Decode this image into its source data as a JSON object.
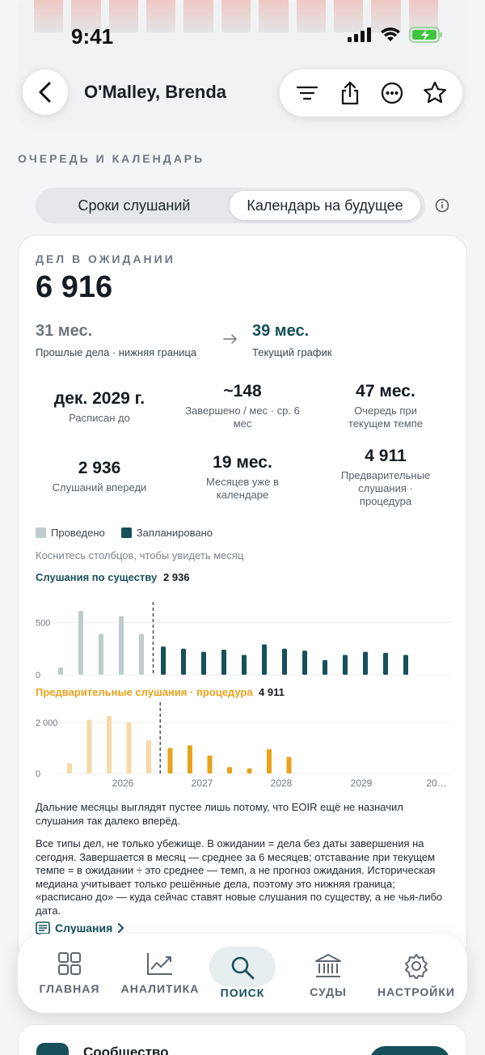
{
  "status_bar": {
    "time": "9:41"
  },
  "header": {
    "title": "O'Malley, Brenda"
  },
  "section_label": "ОЧЕРЕДЬ И КАЛЕНДАРЬ",
  "segments": {
    "tab1": "Сроки слушаний",
    "tab2": "Календарь на будущее",
    "selected": "tab2"
  },
  "pending": {
    "label": "ДЕЛ В ОЖИДАНИИ",
    "value": "6 916"
  },
  "comparison": {
    "past_value": "31 мес.",
    "past_label": "Прошлые дела · нижняя граница",
    "current_value": "39 мес.",
    "current_label": "Текущий график"
  },
  "stats": [
    {
      "value": "дек. 2029 г.",
      "label": "Расписан до"
    },
    {
      "value": "~148",
      "label": "Завершено / мес · ср. 6 мес"
    },
    {
      "value": "47 мес.",
      "label": "Очередь при текущем темпе"
    },
    {
      "value": "2 936",
      "label": "Слушаний впереди"
    },
    {
      "value": "19 мес.",
      "label": "Месяцев уже в календаре"
    },
    {
      "value": "4 911",
      "label": "Предварительные слушания · процедура"
    }
  ],
  "legend": {
    "held": "Проведено",
    "scheduled": "Запланировано"
  },
  "hint": "Коснитесь столбцов, чтобы увидеть месяц",
  "colors": {
    "accent": "#16505a",
    "held": "#bfcccc",
    "orange": "#e8a21c",
    "orange_light": "#f6d9a8"
  },
  "chart_data": [
    {
      "type": "bar",
      "title": "Слушания по существу",
      "total": "2 936",
      "y_ticks": [
        "500",
        "0"
      ],
      "ylim": [
        0,
        650
      ],
      "series": [
        {
          "name": "Проведено",
          "values": [
            70,
            610,
            390,
            560,
            390
          ]
        },
        {
          "name": "Запланировано",
          "values": [
            270,
            250,
            220,
            240,
            190,
            290,
            250,
            230,
            140,
            190,
            220,
            210,
            190
          ]
        }
      ]
    },
    {
      "type": "bar",
      "title": "Предварительные слушания · процедура",
      "total": "4 911",
      "y_ticks": [
        "2 000",
        "0"
      ],
      "ylim": [
        0,
        2600
      ],
      "x_ticks": [
        "2026",
        "2027",
        "2028",
        "2029",
        "20…"
      ],
      "series": [
        {
          "name": "Проведено",
          "values": [
            400,
            2100,
            2250,
            2000,
            1300
          ]
        },
        {
          "name": "Запланировано",
          "values": [
            1000,
            1100,
            700,
            250,
            200,
            950,
            650
          ]
        }
      ]
    }
  ],
  "notes": [
    "Дальние месяцы выглядят пустее лишь потому, что EOIR ещё не назначил слушания так далеко вперёд.",
    "Все типы дел, не только убежище. В ожидании = дела без даты завершения на сегодня. Завершается в месяц — среднее за 6 месяцев; отставание при текущем темпе = в ожидании ÷ это среднее — темп, а не прогноз ожидания. Историческая медиана учитывает только решённые дела, поэтому это нижняя граница; «расписано до» — куда сейчас ставят новые слушания по существу, а не чья-либо дата."
  ],
  "link_label": "Слушания",
  "tabbar": {
    "home": "ГЛАВНАЯ",
    "analytics": "АНАЛИТИКА",
    "search": "ПОИСК",
    "courts": "СУДЫ",
    "settings": "НАСТРОЙКИ"
  },
  "community": {
    "title": "Сообщество"
  }
}
